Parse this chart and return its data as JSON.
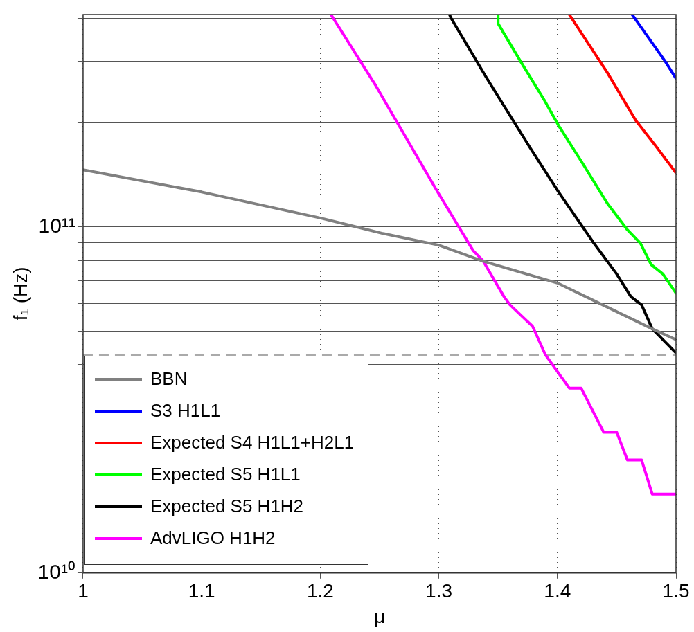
{
  "chart_data": {
    "type": "line",
    "xlabel": "μ",
    "ylabel": "f₁ (Hz)",
    "xlim": [
      1,
      1.5
    ],
    "xticks": [
      1,
      1.1,
      1.2,
      1.3,
      1.4,
      1.5
    ],
    "ylim": [
      10000000000.0,
      410000000000.0
    ],
    "yticks": [
      {
        "value": 10000000000.0,
        "label": "10¹⁰"
      },
      {
        "value": 20000000000.0,
        "label": null
      },
      {
        "value": 30000000000.0,
        "label": null
      },
      {
        "value": 40000000000.0,
        "label": null
      },
      {
        "value": 50000000000.0,
        "label": null
      },
      {
        "value": 60000000000.0,
        "label": null
      },
      {
        "value": 70000000000.0,
        "label": null
      },
      {
        "value": 80000000000.0,
        "label": null
      },
      {
        "value": 90000000000.0,
        "label": null
      },
      {
        "value": 100000000000.0,
        "label": "10¹¹"
      },
      {
        "value": 200000000000.0,
        "label": null
      },
      {
        "value": 300000000000.0,
        "label": null
      },
      {
        "value": 400000000000.0,
        "label": null
      }
    ],
    "log": "y",
    "grid": true,
    "legend": "bottom left",
    "marker": "none",
    "line_style": "solid",
    "series": [
      {
        "name": "BBN",
        "color": "#808080",
        "x": [
          1,
          1.1,
          1.2,
          1.253,
          1.3,
          1.337,
          1.4,
          1.424,
          1.48,
          1.5
        ],
        "values": [
          146000000000.0,
          126000000000.0,
          106000000000.0,
          95600000000.0,
          88500000000.0,
          79600000000.0,
          68800000000.0,
          62800000000.0,
          50700000000.0,
          47200000000.0
        ]
      },
      {
        "name": "S3 H1L1",
        "color": "#0000ff",
        "x": [
          1.463,
          1.491,
          1.5
        ],
        "values": [
          410000000000.0,
          300000000000.0,
          268000000000.0
        ]
      },
      {
        "name": "Expected S4 H1L1+H2L1",
        "color": "#ff0000",
        "x": [
          1.41,
          1.442,
          1.466,
          1.483,
          1.5
        ],
        "values": [
          410000000000.0,
          279000000000.0,
          203000000000.0,
          171000000000.0,
          143000000000.0
        ]
      },
      {
        "name": "Expected S5 H1L1",
        "color": "#00ff00",
        "x": [
          1.35,
          1.35,
          1.369,
          1.389,
          1.401,
          1.422,
          1.442,
          1.459,
          1.47,
          1.479,
          1.489,
          1.5
        ],
        "values": [
          410000000000.0,
          386000000000.0,
          300000000000.0,
          232000000000.0,
          196000000000.0,
          151000000000.0,
          117000000000.0,
          98000000000.0,
          89600000000.0,
          77800000000.0,
          73000000000.0,
          64300000000.0
        ]
      },
      {
        "name": "Expected S5 H1H2",
        "color": "#000000",
        "x": [
          1.309,
          1.31,
          1.34,
          1.377,
          1.401,
          1.43,
          1.45,
          1.462,
          1.471,
          1.48,
          1.5
        ],
        "values": [
          410000000000.0,
          402000000000.0,
          270000000000.0,
          169000000000.0,
          126000000000.0,
          90400000000.0,
          73000000000.0,
          62800000000.0,
          59500000000.0,
          50700000000.0,
          43200000000.0
        ]
      },
      {
        "name": "AdvLIGO H1H2",
        "color": "#ff00ff",
        "x": [
          1.209,
          1.247,
          1.299,
          1.329,
          1.337,
          1.355,
          1.36,
          1.379,
          1.39,
          1.41,
          1.42,
          1.439,
          1.45,
          1.459,
          1.471,
          1.48,
          1.5
        ],
        "values": [
          410000000000.0,
          255000000000.0,
          126000000000.0,
          85300000000.0,
          80000000000.0,
          62800000000.0,
          59500000000.0,
          51600000000.0,
          42600000000.0,
          34200000000.0,
          34200000000.0,
          25500000000.0,
          25500000000.0,
          21200000000.0,
          21200000000.0,
          16900000000.0,
          16900000000.0
        ]
      }
    ],
    "ref_lines": [
      {
        "axis": "y",
        "value": 42600000000.0,
        "color": "#aaaaaa",
        "line_style": "dashed"
      }
    ]
  }
}
